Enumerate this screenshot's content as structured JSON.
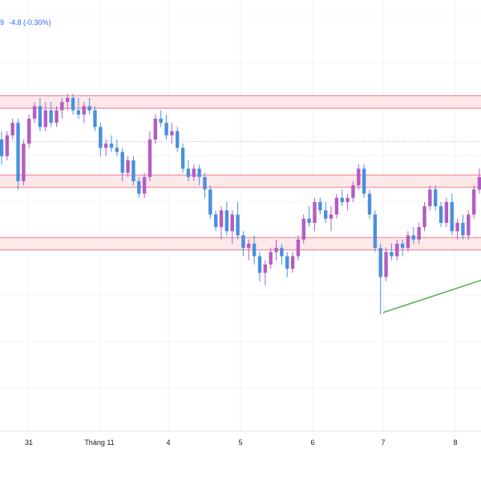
{
  "header": {
    "price_tail": "9",
    "change": "-4.8 (-0.30%)",
    "change_color": "#2962ff"
  },
  "colors": {
    "bull": "#b45cc2",
    "bear": "#4a8fe0",
    "zone_fill": "#fde8ea",
    "zone_line": "#f07a85",
    "grid": "#f0f3fa",
    "dotted_line": "#b2b5be",
    "trendline_green": "#4caf50",
    "trendline_blue": "#2e5fb3"
  },
  "chart_data": {
    "type": "candlestick",
    "x_tick_labels": [
      "31",
      "Tháng 11",
      "4",
      "5",
      "6",
      "7",
      "8"
    ],
    "y_range": [
      0,
      100
    ],
    "zones": [
      {
        "low": 77.5,
        "high": 80.5
      },
      {
        "low": 58.5,
        "high": 61.5
      },
      {
        "low": 43.5,
        "high": 46.5
      }
    ],
    "dotted_level": 69.5,
    "trendlines": [
      {
        "color": "green",
        "points": [
          [
            0.0,
            28.5
          ],
          [
            5.5,
            59.5
          ]
        ]
      },
      {
        "color": "blue",
        "points": [
          [
            5.5,
            59.5
          ],
          [
            7.3,
            59.5
          ]
        ]
      },
      {
        "color": "green",
        "points": [
          [
            5.6,
            58.0
          ],
          [
            6.3,
            46.5
          ]
        ]
      },
      {
        "color": "green",
        "points": [
          [
            6.3,
            46.5
          ],
          [
            7.3,
            57.0
          ]
        ]
      }
    ],
    "candles": [
      [
        70,
        72,
        64,
        66
      ],
      [
        66,
        72,
        65,
        71
      ],
      [
        71,
        75,
        70,
        74
      ],
      [
        74,
        75,
        58,
        60
      ],
      [
        60,
        70,
        59,
        69
      ],
      [
        69,
        76,
        68,
        75
      ],
      [
        75,
        79,
        74,
        78
      ],
      [
        78,
        80,
        72,
        73
      ],
      [
        73,
        79,
        72,
        77
      ],
      [
        77,
        79,
        73,
        74
      ],
      [
        74,
        78,
        73,
        77
      ],
      [
        77,
        80,
        75,
        79
      ],
      [
        79,
        81,
        77,
        80
      ],
      [
        80,
        81,
        76,
        77
      ],
      [
        77,
        80,
        75,
        76
      ],
      [
        76,
        79,
        74,
        78
      ],
      [
        78,
        80,
        76,
        77
      ],
      [
        77,
        78,
        72,
        73
      ],
      [
        73,
        74,
        66,
        68
      ],
      [
        68,
        70,
        66,
        69
      ],
      [
        69,
        71,
        67,
        68
      ],
      [
        68,
        70,
        66,
        67
      ],
      [
        67,
        68,
        60,
        62
      ],
      [
        62,
        66,
        61,
        65
      ],
      [
        65,
        66,
        59,
        60
      ],
      [
        60,
        61,
        56,
        57
      ],
      [
        57,
        62,
        56,
        61
      ],
      [
        61,
        72,
        60,
        70
      ],
      [
        70,
        76,
        69,
        75
      ],
      [
        75,
        77,
        73,
        74
      ],
      [
        74,
        76,
        70,
        71
      ],
      [
        71,
        74,
        69,
        72
      ],
      [
        72,
        73,
        67,
        68
      ],
      [
        68,
        69,
        62,
        63
      ],
      [
        63,
        65,
        60,
        61
      ],
      [
        61,
        64,
        60,
        63
      ],
      [
        63,
        64,
        59,
        61
      ],
      [
        61,
        62,
        56,
        58
      ],
      [
        58,
        59,
        51,
        52
      ],
      [
        52,
        53,
        48,
        49
      ],
      [
        49,
        54,
        46,
        53
      ],
      [
        53,
        55,
        47,
        48
      ],
      [
        48,
        53,
        45,
        52
      ],
      [
        52,
        55,
        46,
        47
      ],
      [
        47,
        48,
        42,
        44
      ],
      [
        44,
        46,
        41,
        45
      ],
      [
        45,
        47,
        40,
        42
      ],
      [
        42,
        43,
        36,
        38
      ],
      [
        38,
        41,
        35,
        40
      ],
      [
        40,
        44,
        39,
        43
      ],
      [
        43,
        46,
        41,
        44
      ],
      [
        44,
        45,
        40,
        42
      ],
      [
        42,
        43,
        37,
        39
      ],
      [
        39,
        43,
        38,
        42
      ],
      [
        42,
        47,
        41,
        46
      ],
      [
        46,
        52,
        45,
        51
      ],
      [
        51,
        54,
        49,
        50
      ],
      [
        50,
        56,
        48,
        55
      ],
      [
        55,
        56,
        52,
        53
      ],
      [
        53,
        55,
        50,
        51
      ],
      [
        51,
        54,
        48,
        52
      ],
      [
        52,
        57,
        51,
        56
      ],
      [
        56,
        58,
        54,
        55
      ],
      [
        55,
        57,
        53,
        56
      ],
      [
        56,
        60,
        55,
        59
      ],
      [
        59,
        64,
        58,
        63
      ],
      [
        63,
        64,
        56,
        57
      ],
      [
        57,
        58,
        51,
        52
      ],
      [
        52,
        53,
        43,
        44
      ],
      [
        44,
        45,
        28,
        37
      ],
      [
        37,
        44,
        36,
        43
      ],
      [
        43,
        45,
        41,
        42
      ],
      [
        42,
        46,
        41,
        45
      ],
      [
        45,
        46,
        42,
        44
      ],
      [
        44,
        48,
        43,
        47
      ],
      [
        47,
        49,
        45,
        46
      ],
      [
        46,
        50,
        45,
        49
      ],
      [
        49,
        55,
        48,
        54
      ],
      [
        54,
        59,
        53,
        58
      ],
      [
        58,
        59,
        53,
        54
      ],
      [
        54,
        55,
        49,
        50
      ],
      [
        50,
        56,
        49,
        55
      ],
      [
        55,
        57,
        47,
        48
      ],
      [
        48,
        51,
        46,
        50
      ],
      [
        50,
        52,
        46,
        47
      ],
      [
        47,
        53,
        46,
        52
      ],
      [
        52,
        59,
        51,
        58
      ],
      [
        58,
        63,
        57,
        61
      ]
    ]
  }
}
